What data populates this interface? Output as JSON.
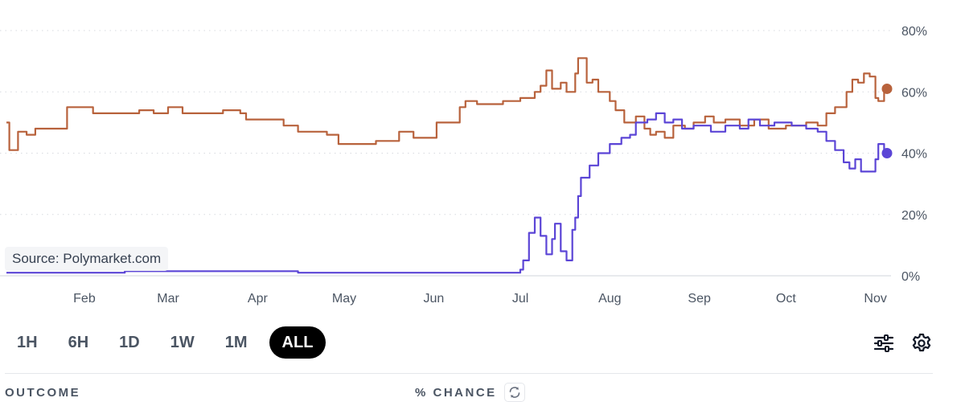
{
  "chart_data": {
    "type": "line",
    "source": "Source: Polymarket.com",
    "y_ticks": [
      "80%",
      "60%",
      "40%",
      "20%",
      "0%"
    ],
    "y_tick_values": [
      80,
      60,
      40,
      20,
      0
    ],
    "ylim": [
      0,
      80
    ],
    "x_ticks": [
      "Feb",
      "Mar",
      "Apr",
      "May",
      "Jun",
      "Jul",
      "Aug",
      "Sep",
      "Oct",
      "Nov"
    ],
    "xlim": [
      "2024-01-05",
      "2024-11-05"
    ],
    "grid": true,
    "series": [
      {
        "color": "#b8623c",
        "points": [
          [
            "2024-01-05",
            50
          ],
          [
            "2024-01-06",
            41
          ],
          [
            "2024-01-08",
            41
          ],
          [
            "2024-01-09",
            47
          ],
          [
            "2024-01-12",
            46
          ],
          [
            "2024-01-15",
            48
          ],
          [
            "2024-01-25",
            48
          ],
          [
            "2024-01-26",
            55
          ],
          [
            "2024-02-03",
            55
          ],
          [
            "2024-02-04",
            53
          ],
          [
            "2024-02-15",
            53
          ],
          [
            "2024-02-20",
            54
          ],
          [
            "2024-02-25",
            53
          ],
          [
            "2024-03-01",
            55
          ],
          [
            "2024-03-06",
            53
          ],
          [
            "2024-03-15",
            53
          ],
          [
            "2024-03-20",
            54
          ],
          [
            "2024-03-26",
            53
          ],
          [
            "2024-03-28",
            51
          ],
          [
            "2024-04-10",
            49
          ],
          [
            "2024-04-15",
            47
          ],
          [
            "2024-04-25",
            46
          ],
          [
            "2024-04-29",
            43
          ],
          [
            "2024-05-05",
            43
          ],
          [
            "2024-05-12",
            44
          ],
          [
            "2024-05-20",
            47
          ],
          [
            "2024-05-25",
            45
          ],
          [
            "2024-05-31",
            45
          ],
          [
            "2024-06-02",
            50
          ],
          [
            "2024-06-05",
            50
          ],
          [
            "2024-06-10",
            55
          ],
          [
            "2024-06-12",
            57
          ],
          [
            "2024-06-16",
            56
          ],
          [
            "2024-06-20",
            56
          ],
          [
            "2024-06-25",
            57
          ],
          [
            "2024-07-01",
            58
          ],
          [
            "2024-07-06",
            60
          ],
          [
            "2024-07-08",
            62
          ],
          [
            "2024-07-10",
            67
          ],
          [
            "2024-07-12",
            61
          ],
          [
            "2024-07-15",
            63
          ],
          [
            "2024-07-17",
            60
          ],
          [
            "2024-07-20",
            66
          ],
          [
            "2024-07-21",
            71
          ],
          [
            "2024-07-24",
            63
          ],
          [
            "2024-07-26",
            64
          ],
          [
            "2024-07-28",
            60
          ],
          [
            "2024-07-30",
            60
          ],
          [
            "2024-08-01",
            57
          ],
          [
            "2024-08-03",
            54
          ],
          [
            "2024-08-06",
            50
          ],
          [
            "2024-08-10",
            52
          ],
          [
            "2024-08-13",
            48
          ],
          [
            "2024-08-15",
            46
          ],
          [
            "2024-08-17",
            47
          ],
          [
            "2024-08-20",
            45
          ],
          [
            "2024-08-23",
            49
          ],
          [
            "2024-08-27",
            48
          ],
          [
            "2024-08-30",
            50
          ],
          [
            "2024-09-03",
            52
          ],
          [
            "2024-09-06",
            50
          ],
          [
            "2024-09-10",
            51
          ],
          [
            "2024-09-15",
            49
          ],
          [
            "2024-09-20",
            51
          ],
          [
            "2024-09-25",
            48
          ],
          [
            "2024-10-01",
            49
          ],
          [
            "2024-10-08",
            50
          ],
          [
            "2024-10-12",
            49
          ],
          [
            "2024-10-15",
            53
          ],
          [
            "2024-10-18",
            55
          ],
          [
            "2024-10-22",
            60
          ],
          [
            "2024-10-24",
            64
          ],
          [
            "2024-10-26",
            63
          ],
          [
            "2024-10-28",
            66
          ],
          [
            "2024-10-30",
            65
          ],
          [
            "2024-11-01",
            58
          ],
          [
            "2024-11-02",
            57
          ],
          [
            "2024-11-04",
            60
          ],
          [
            "2024-11-05",
            61
          ]
        ]
      },
      {
        "color": "#5b45d6",
        "points": [
          [
            "2024-01-05",
            1
          ],
          [
            "2024-02-15",
            1.5
          ],
          [
            "2024-03-15",
            1.5
          ],
          [
            "2024-04-15",
            1
          ],
          [
            "2024-05-15",
            1
          ],
          [
            "2024-06-15",
            1
          ],
          [
            "2024-06-28",
            1
          ],
          [
            "2024-07-01",
            2
          ],
          [
            "2024-07-02",
            5
          ],
          [
            "2024-07-04",
            14
          ],
          [
            "2024-07-06",
            19
          ],
          [
            "2024-07-08",
            13
          ],
          [
            "2024-07-10",
            7
          ],
          [
            "2024-07-12",
            12
          ],
          [
            "2024-07-13",
            17
          ],
          [
            "2024-07-15",
            8
          ],
          [
            "2024-07-17",
            5
          ],
          [
            "2024-07-19",
            15
          ],
          [
            "2024-07-20",
            19
          ],
          [
            "2024-07-21",
            26
          ],
          [
            "2024-07-22",
            32
          ],
          [
            "2024-07-25",
            36
          ],
          [
            "2024-07-28",
            40
          ],
          [
            "2024-08-01",
            43
          ],
          [
            "2024-08-05",
            45
          ],
          [
            "2024-08-08",
            46
          ],
          [
            "2024-08-10",
            50
          ],
          [
            "2024-08-14",
            51
          ],
          [
            "2024-08-17",
            53
          ],
          [
            "2024-08-20",
            50
          ],
          [
            "2024-08-23",
            51
          ],
          [
            "2024-08-26",
            48
          ],
          [
            "2024-08-30",
            49
          ],
          [
            "2024-09-05",
            47
          ],
          [
            "2024-09-10",
            49
          ],
          [
            "2024-09-15",
            48
          ],
          [
            "2024-09-18",
            51
          ],
          [
            "2024-09-22",
            49
          ],
          [
            "2024-09-27",
            50
          ],
          [
            "2024-10-03",
            49
          ],
          [
            "2024-10-08",
            48
          ],
          [
            "2024-10-12",
            47
          ],
          [
            "2024-10-15",
            44
          ],
          [
            "2024-10-18",
            41
          ],
          [
            "2024-10-21",
            37
          ],
          [
            "2024-10-23",
            35
          ],
          [
            "2024-10-25",
            38
          ],
          [
            "2024-10-27",
            34
          ],
          [
            "2024-10-30",
            34
          ],
          [
            "2024-11-01",
            38
          ],
          [
            "2024-11-02",
            43
          ],
          [
            "2024-11-04",
            41
          ],
          [
            "2024-11-05",
            40
          ]
        ]
      }
    ]
  },
  "range_buttons": [
    "1H",
    "6H",
    "1D",
    "1W",
    "1M",
    "ALL"
  ],
  "active_range": "ALL",
  "table": {
    "outcome_header": "OUTCOME",
    "chance_header": "% CHANCE"
  },
  "icons": [
    "filter-sliders-icon",
    "gear-icon",
    "refresh-icon"
  ]
}
